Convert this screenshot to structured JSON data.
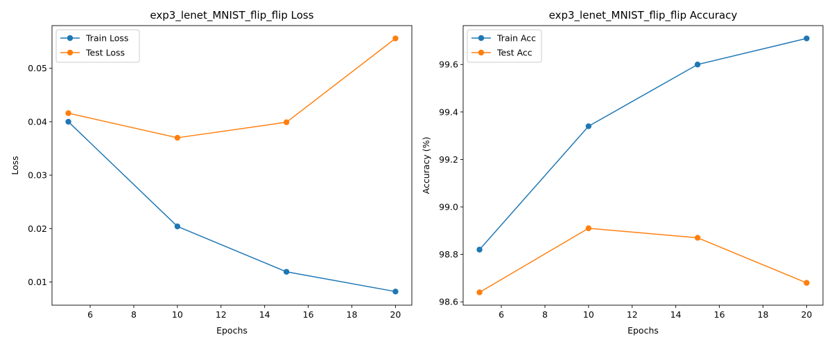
{
  "colors": {
    "series_1": "#1f77b4",
    "series_2": "#ff7f0e"
  },
  "chart_data": [
    {
      "type": "line",
      "title": "exp3_lenet_MNIST_flip_flip Loss",
      "xlabel": "Epochs",
      "ylabel": "Loss",
      "x": [
        5,
        10,
        15,
        20
      ],
      "xlim": [
        4.25,
        20.75
      ],
      "ylim": [
        0.00565,
        0.058
      ],
      "xticks": [
        6,
        8,
        10,
        12,
        14,
        16,
        18,
        20
      ],
      "yticks": [
        0.01,
        0.02,
        0.03,
        0.04,
        0.05
      ],
      "ytick_labels": [
        "0.01",
        "0.02",
        "0.03",
        "0.04",
        "0.05"
      ],
      "legend_position": "top-left",
      "grid": false,
      "series": [
        {
          "name": "Train Loss",
          "values": [
            0.04,
            0.0204,
            0.0119,
            0.0082
          ],
          "color": "#1f77b4",
          "marker": "circle"
        },
        {
          "name": "Test Loss",
          "values": [
            0.0416,
            0.037,
            0.0399,
            0.0556
          ],
          "color": "#ff7f0e",
          "marker": "circle"
        }
      ]
    },
    {
      "type": "line",
      "title": "exp3_lenet_MNIST_flip_flip Accuracy",
      "xlabel": "Epochs",
      "ylabel": "Accuracy (%)",
      "x": [
        5,
        10,
        15,
        20
      ],
      "xlim": [
        4.25,
        20.75
      ],
      "ylim": [
        98.586,
        99.764
      ],
      "xticks": [
        6,
        8,
        10,
        12,
        14,
        16,
        18,
        20
      ],
      "yticks": [
        98.6,
        98.8,
        99.0,
        99.2,
        99.4,
        99.6
      ],
      "ytick_labels": [
        "98.6",
        "98.8",
        "99.0",
        "99.2",
        "99.4",
        "99.6"
      ],
      "legend_position": "top-left",
      "grid": false,
      "series": [
        {
          "name": "Train Acc",
          "values": [
            98.82,
            99.34,
            99.6,
            99.71
          ],
          "color": "#1f77b4",
          "marker": "circle"
        },
        {
          "name": "Test Acc",
          "values": [
            98.64,
            98.91,
            98.87,
            98.68
          ],
          "color": "#ff7f0e",
          "marker": "circle"
        }
      ]
    }
  ]
}
